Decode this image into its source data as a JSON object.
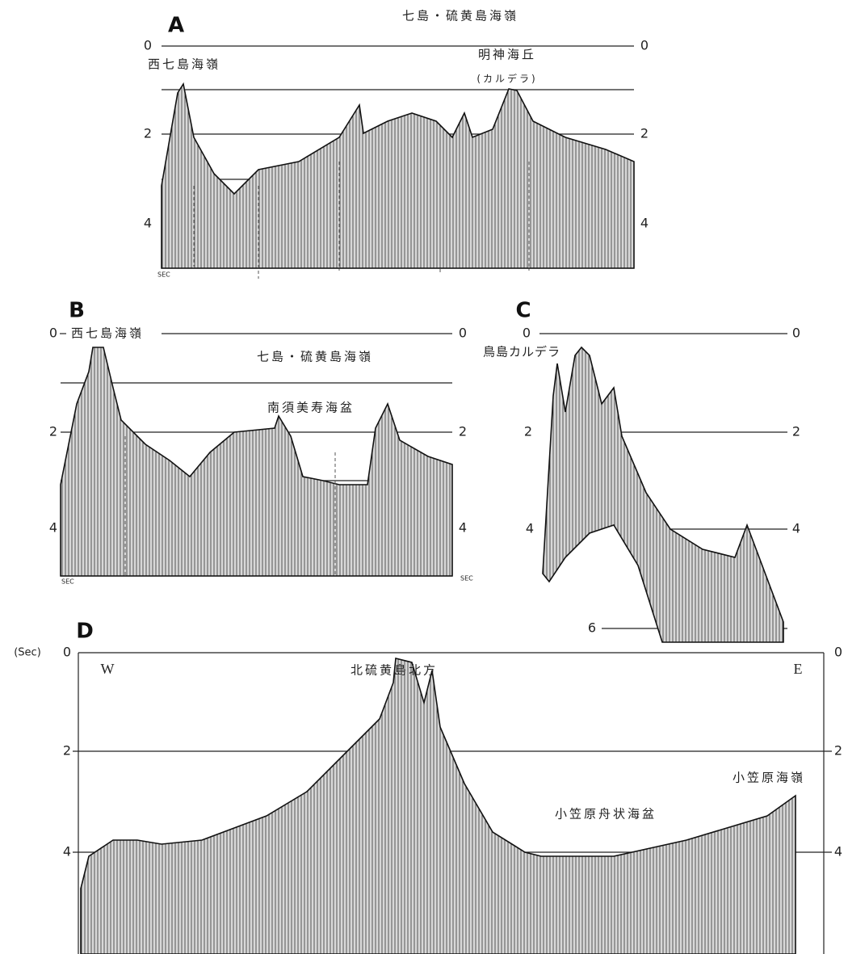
{
  "panels": [
    {
      "label": "A",
      "title": "七島・硫黄島海嶺",
      "left_ticks": [
        "0",
        "2",
        "4"
      ],
      "right_ticks": [
        "0",
        "2",
        "4"
      ],
      "annotations": [
        "西七島海嶺",
        "明神海丘",
        "(カルデラ)"
      ],
      "unit": "SEC"
    },
    {
      "label": "B",
      "left_ticks": [
        "0",
        "2",
        "4"
      ],
      "right_ticks": [
        "0",
        "2",
        "4"
      ],
      "annotations": [
        "西七島海嶺",
        "七島・硫黄島海嶺",
        "南須美寿海盆"
      ],
      "unit": "SEC"
    },
    {
      "label": "C",
      "left_ticks": [
        "0",
        "2",
        "4",
        "6"
      ],
      "right_ticks": [
        "0",
        "2",
        "4"
      ],
      "annotations": [
        "鳥島カルデラ"
      ]
    },
    {
      "label": "D",
      "unit": "(Sec)",
      "left_ticks": [
        "0",
        "2",
        "4"
      ],
      "right_ticks": [
        "0",
        "2",
        "4"
      ],
      "annotations": [
        "W",
        "E",
        "北硫黄島北方",
        "小笠原海嶺",
        "小笠原舟状海盆"
      ]
    }
  ]
}
